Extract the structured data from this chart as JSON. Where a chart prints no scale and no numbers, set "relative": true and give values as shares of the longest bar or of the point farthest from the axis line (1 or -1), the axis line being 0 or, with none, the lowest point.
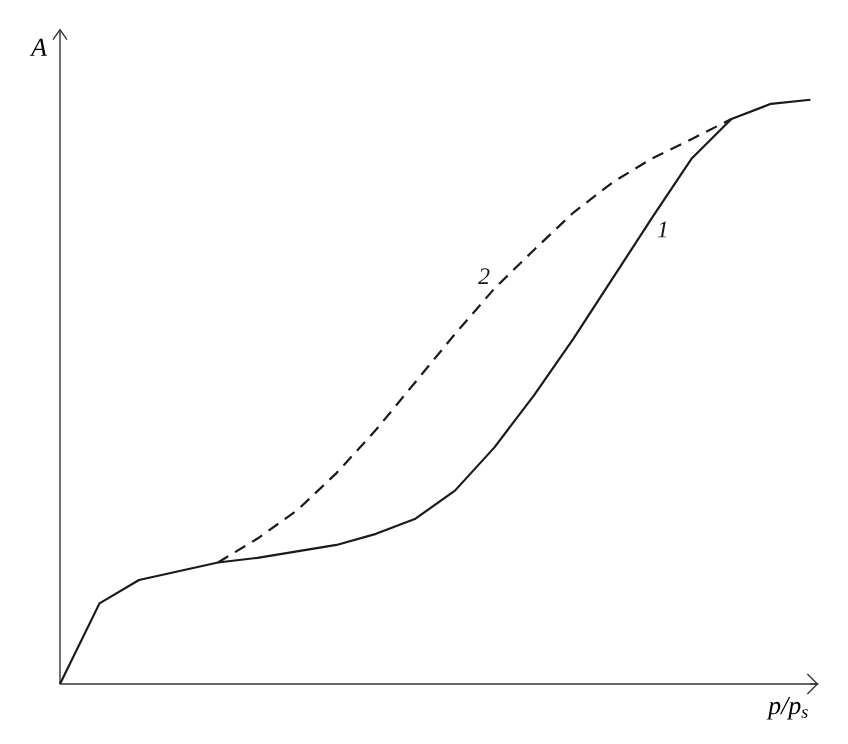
{
  "chart_data": {
    "type": "line",
    "relative": true,
    "xlabel": "p/p$_{s}$",
    "ylabel": "A",
    "categories": [
      null,
      null,
      null,
      null,
      null,
      null,
      null,
      null,
      null,
      null,
      null,
      null,
      null,
      null,
      null,
      null,
      null,
      null,
      null,
      null
    ],
    "series": [
      {
        "name": "1",
        "color": "#1a1a1a",
        "line_style": "solid",
        "values": [
          0,
          0.138,
          0.178,
          0.193,
          0.208,
          0.216,
          0.227,
          0.238,
          0.257,
          0.283,
          0.331,
          0.405,
          0.494,
          0.591,
          0.695,
          0.799,
          0.9,
          0.967,
          0.993,
          1
        ]
      },
      {
        "name": "2",
        "color": "#1a1a1a",
        "line_style": "dashed",
        "values": [
          null,
          null,
          null,
          null,
          0.208,
          0.249,
          0.297,
          0.361,
          0.435,
          0.517,
          0.599,
          0.677,
          0.743,
          0.807,
          0.859,
          0.9,
          0.933,
          0.967,
          null,
          null
        ]
      }
    ],
    "marker": "none"
  }
}
